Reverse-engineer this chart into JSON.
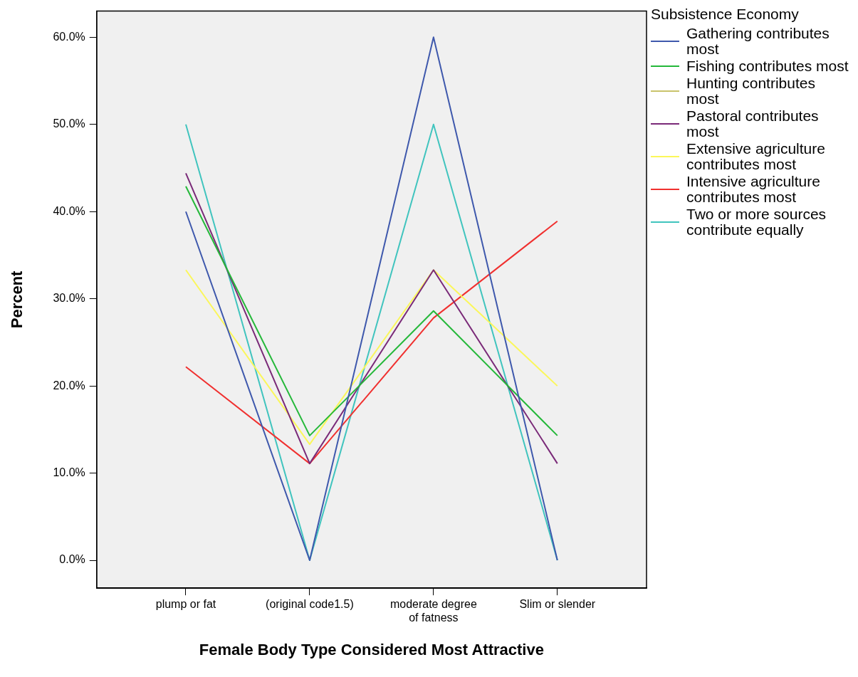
{
  "chart_data": {
    "type": "line",
    "xlabel": "Female Body Type Considered Most Attractive",
    "ylabel": "Percent",
    "legend_title": "Subsistence Economy",
    "categories": [
      "plump or fat",
      "(original code1.5)",
      "moderate degree of fatness",
      "Slim or slender"
    ],
    "series": [
      {
        "name": "Gathering contributes most",
        "color": "#3e58ac",
        "values": [
          40,
          0,
          60,
          0
        ]
      },
      {
        "name": "Fishing contributes most",
        "color": "#25b83a",
        "values": [
          42.9,
          14.3,
          28.6,
          14.3
        ]
      },
      {
        "name": "Hunting contributes most",
        "color": "#c9c36b",
        "values": [
          null,
          null,
          null,
          null
        ]
      },
      {
        "name": "Pastoral contributes most",
        "color": "#7a2a78",
        "values": [
          44.4,
          11.1,
          33.3,
          11.1
        ]
      },
      {
        "name": "Extensive agriculture contributes most",
        "color": "#fbf75a",
        "values": [
          33.3,
          13.3,
          33.3,
          20
        ]
      },
      {
        "name": "Intensive agriculture contributes most",
        "color": "#f0302f",
        "values": [
          22.2,
          11.1,
          27.8,
          38.9
        ]
      },
      {
        "name": "Two or more sources contribute equally",
        "color": "#40c4be",
        "values": [
          50,
          0,
          50,
          0
        ]
      }
    ],
    "ylim": [
      -3.2,
      63
    ],
    "yticks": [
      {
        "value": 0,
        "label": "0.0%"
      },
      {
        "value": 10,
        "label": "10.0%"
      },
      {
        "value": 20,
        "label": "20.0%"
      },
      {
        "value": 30,
        "label": "30.0%"
      },
      {
        "value": 40,
        "label": "40.0%"
      },
      {
        "value": 50,
        "label": "50.0%"
      },
      {
        "value": 60,
        "label": "60.0%"
      }
    ],
    "grid": false,
    "legend": "right",
    "marker": "none",
    "line_style": "solid"
  }
}
